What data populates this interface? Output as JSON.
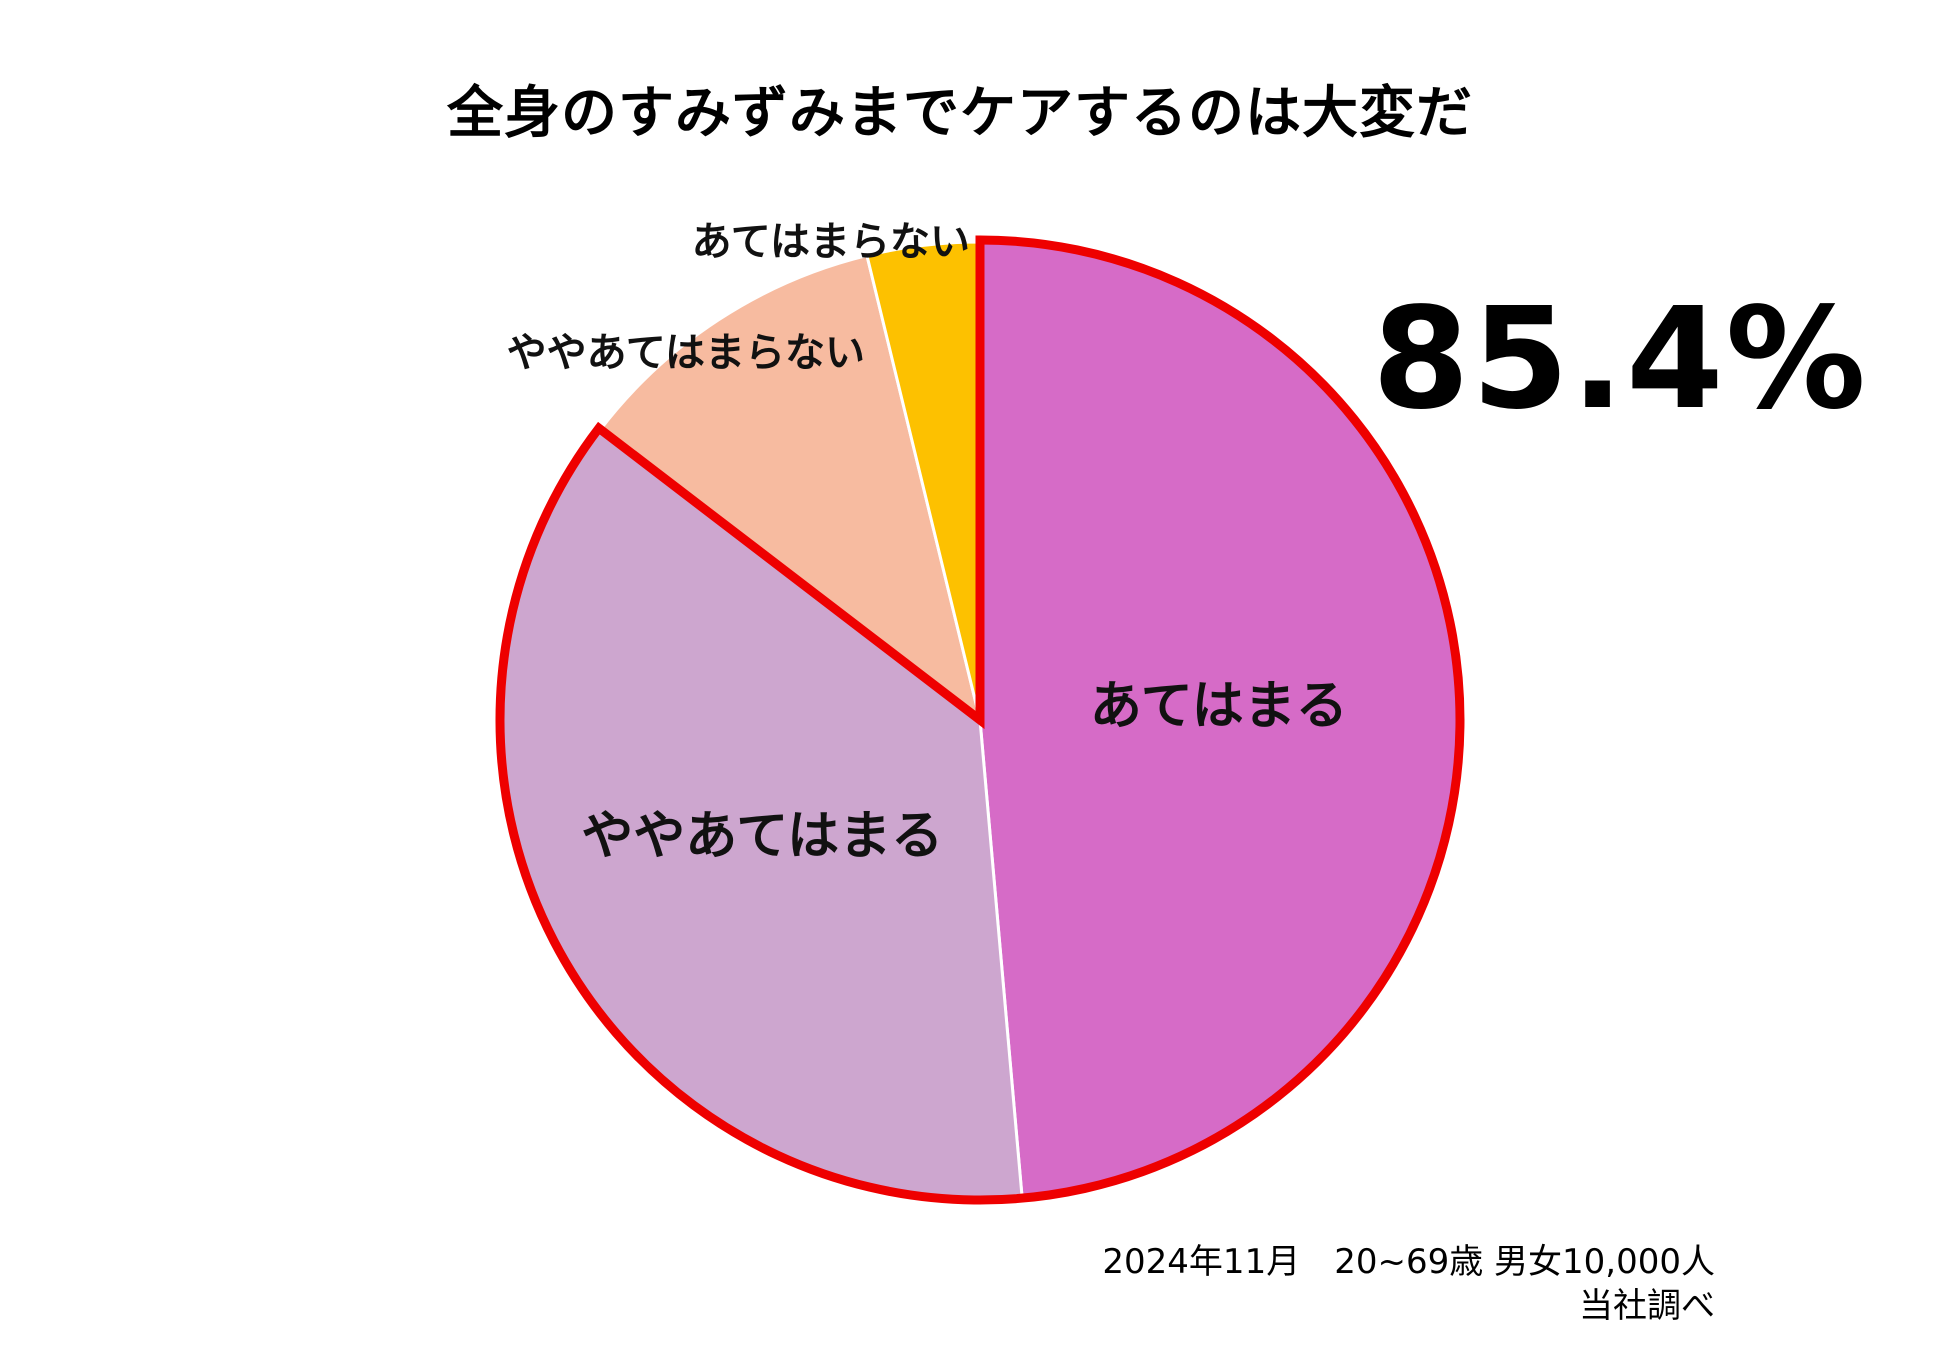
{
  "chart_data": {
    "type": "pie",
    "title": "全身のすみずみまでケアするのは大変だ",
    "slices": [
      {
        "label": "あてはまる",
        "value": 48.6,
        "color": "#d66bc7"
      },
      {
        "label": "ややあてはまる",
        "value": 36.8,
        "color": "#cda6cf"
      },
      {
        "label": "ややあてはまらない",
        "value": 10.8,
        "color": "#f7bba0"
      },
      {
        "label": "あてはまらない",
        "value": 3.8,
        "color": "#fdc100"
      }
    ],
    "start_angle_deg": 0,
    "direction": "clockwise",
    "highlight": {
      "slices": [
        "あてはまる",
        "ややあてはまる"
      ],
      "outline_color": "#ee0000",
      "callout": "85.4%"
    }
  },
  "source": {
    "line1": "2024年11月　20~69歳 男女10,000人",
    "line2": "当社調べ"
  },
  "colors": {
    "background": "#ffffff",
    "separator": "#ffffff"
  }
}
